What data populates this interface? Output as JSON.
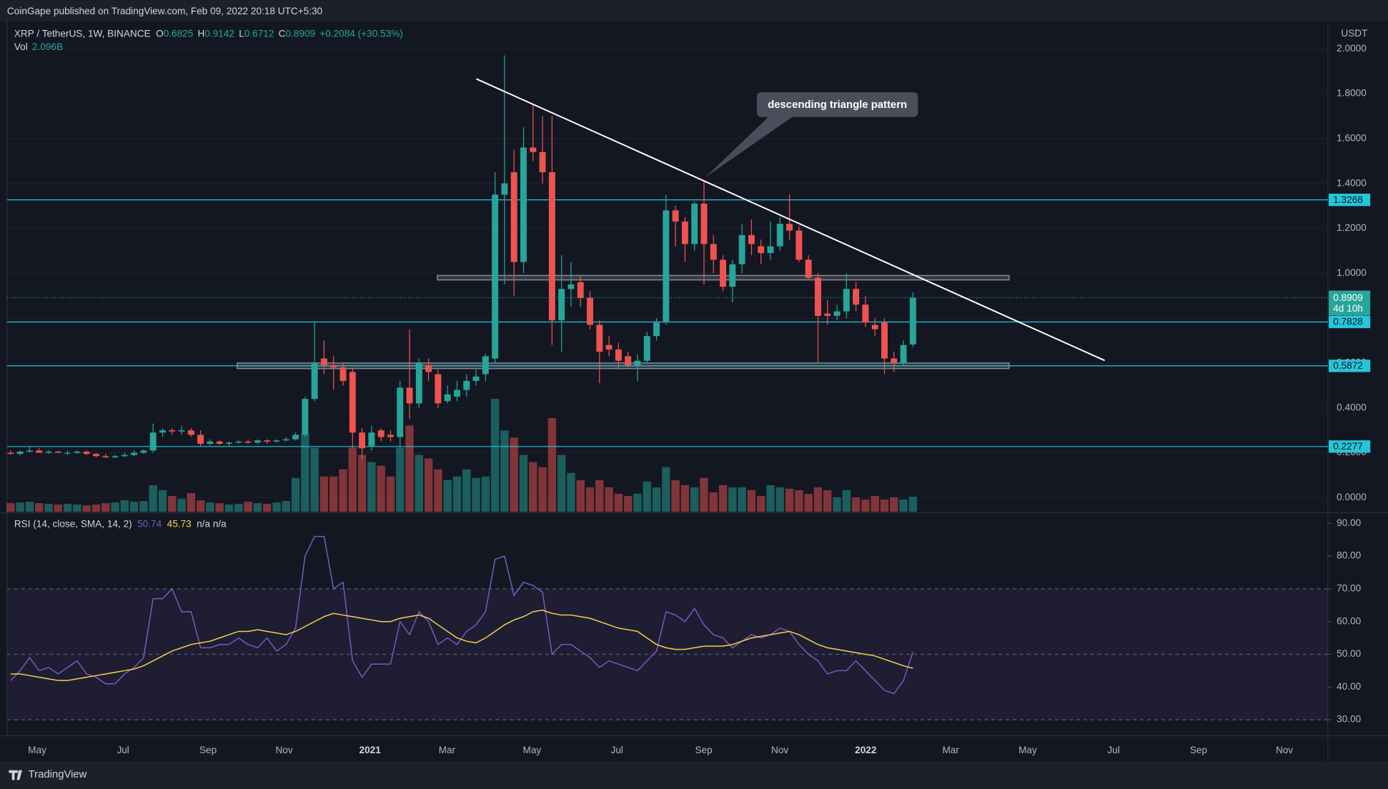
{
  "header": "CoinGape published on TradingView.com, Feb 09, 2022 20:18 UTC+5:30",
  "footer": "TradingView",
  "chart_data": [
    {
      "type": "candlestick",
      "symbol": "XRP / TetherUS, 1W, BINANCE",
      "ohlc_labels": [
        "O",
        "H",
        "L",
        "C"
      ],
      "change": "+0.2084 (+30.53%)",
      "vol_name": "Vol",
      "vol_label": "2.096B",
      "axis_unit": "USDT",
      "countdown": "4d 10h",
      "annotation": "descending triangle pattern",
      "x_labels": [
        "May",
        "Jul",
        "Sep",
        "Nov",
        "2021",
        "Mar",
        "May",
        "Jul",
        "Sep",
        "Nov",
        "2022",
        "Mar",
        "May",
        "Jul",
        "Sep",
        "Nov"
      ],
      "candles": {
        "open": [
          0.2,
          0.195,
          0.205,
          0.21,
          0.2,
          0.205,
          0.2,
          0.2,
          0.205,
          0.195,
          0.185,
          0.18,
          0.185,
          0.19,
          0.2,
          0.21,
          0.29,
          0.3,
          0.295,
          0.3,
          0.28,
          0.24,
          0.25,
          0.24,
          0.245,
          0.25,
          0.245,
          0.255,
          0.25,
          0.255,
          0.26,
          0.28,
          0.44,
          0.62,
          0.59,
          0.58,
          0.56,
          0.29,
          0.23,
          0.3,
          0.28,
          0.27,
          0.49,
          0.42,
          0.59,
          0.55,
          0.43,
          0.45,
          0.48,
          0.52,
          0.55,
          0.62,
          1.35,
          1.45,
          1.05,
          1.56,
          1.54,
          1.45,
          0.79,
          0.93,
          0.96,
          0.89,
          0.77,
          0.68,
          0.66,
          0.63,
          0.59,
          0.61,
          0.72,
          0.78,
          1.28,
          1.23,
          1.13,
          1.31,
          1.13,
          1.06,
          0.94,
          1.04,
          1.17,
          1.12,
          1.09,
          1.12,
          1.22,
          1.19,
          1.06,
          0.98,
          0.82,
          0.81,
          0.83,
          0.93,
          0.86,
          0.77,
          0.78,
          0.62,
          0.6,
          0.6825
        ],
        "high": [
          0.21,
          0.21,
          0.23,
          0.22,
          0.21,
          0.21,
          0.21,
          0.21,
          0.21,
          0.2,
          0.195,
          0.19,
          0.2,
          0.21,
          0.215,
          0.33,
          0.31,
          0.31,
          0.32,
          0.31,
          0.3,
          0.26,
          0.255,
          0.25,
          0.255,
          0.26,
          0.26,
          0.26,
          0.26,
          0.27,
          0.29,
          0.45,
          0.78,
          0.7,
          0.63,
          0.6,
          0.58,
          0.31,
          0.32,
          0.31,
          0.3,
          0.52,
          0.75,
          0.62,
          0.62,
          0.57,
          0.5,
          0.52,
          0.55,
          0.57,
          0.64,
          1.45,
          1.97,
          1.55,
          1.65,
          1.75,
          1.7,
          1.7,
          1.08,
          1.05,
          0.99,
          0.92,
          0.79,
          0.72,
          0.69,
          0.65,
          0.64,
          0.74,
          0.8,
          1.35,
          1.3,
          1.25,
          1.32,
          1.41,
          1.17,
          1.08,
          1.06,
          1.22,
          1.24,
          1.15,
          1.23,
          1.25,
          1.35,
          1.21,
          1.08,
          1.0,
          0.88,
          0.86,
          1.0,
          0.96,
          0.9,
          0.8,
          0.8,
          0.65,
          0.7,
          0.9142
        ],
        "low": [
          0.19,
          0.19,
          0.2,
          0.2,
          0.195,
          0.2,
          0.19,
          0.195,
          0.19,
          0.18,
          0.175,
          0.175,
          0.18,
          0.185,
          0.195,
          0.2,
          0.27,
          0.28,
          0.28,
          0.27,
          0.23,
          0.235,
          0.235,
          0.23,
          0.24,
          0.24,
          0.24,
          0.24,
          0.245,
          0.25,
          0.255,
          0.27,
          0.43,
          0.55,
          0.48,
          0.5,
          0.22,
          0.17,
          0.21,
          0.25,
          0.25,
          0.22,
          0.35,
          0.4,
          0.52,
          0.4,
          0.42,
          0.43,
          0.45,
          0.5,
          0.52,
          0.6,
          0.95,
          0.9,
          1.0,
          1.5,
          1.4,
          0.68,
          0.65,
          0.85,
          0.85,
          0.75,
          0.51,
          0.63,
          0.57,
          0.58,
          0.52,
          0.6,
          0.7,
          0.77,
          1.12,
          1.05,
          1.1,
          0.95,
          1.0,
          0.92,
          0.87,
          1.0,
          1.08,
          1.04,
          1.06,
          1.1,
          1.15,
          1.05,
          0.97,
          0.6,
          0.77,
          0.79,
          0.8,
          0.83,
          0.76,
          0.72,
          0.55,
          0.56,
          0.59,
          0.6712
        ],
        "close": [
          0.195,
          0.205,
          0.21,
          0.2,
          0.205,
          0.2,
          0.2,
          0.205,
          0.195,
          0.185,
          0.18,
          0.185,
          0.19,
          0.2,
          0.21,
          0.29,
          0.3,
          0.295,
          0.3,
          0.28,
          0.24,
          0.25,
          0.24,
          0.245,
          0.25,
          0.245,
          0.255,
          0.25,
          0.255,
          0.26,
          0.28,
          0.44,
          0.6,
          0.59,
          0.58,
          0.52,
          0.29,
          0.22,
          0.29,
          0.27,
          0.27,
          0.49,
          0.42,
          0.6,
          0.56,
          0.42,
          0.46,
          0.48,
          0.52,
          0.54,
          0.63,
          1.35,
          1.4,
          1.05,
          1.56,
          1.54,
          1.45,
          0.79,
          0.93,
          0.95,
          0.89,
          0.77,
          0.65,
          0.66,
          0.61,
          0.59,
          0.61,
          0.72,
          0.78,
          1.28,
          1.23,
          1.13,
          1.31,
          1.13,
          1.06,
          0.94,
          1.04,
          1.17,
          1.13,
          1.09,
          1.12,
          1.22,
          1.19,
          1.06,
          0.98,
          0.81,
          0.81,
          0.83,
          0.93,
          0.86,
          0.78,
          0.75,
          0.62,
          0.6,
          0.68,
          0.8909
        ],
        "volume": [
          1.2,
          1.3,
          1.4,
          1.2,
          1.1,
          1.0,
          1.1,
          1.0,
          0.9,
          1.0,
          1.2,
          1.3,
          1.6,
          1.4,
          1.5,
          3.7,
          3.0,
          2.2,
          1.8,
          2.6,
          1.6,
          1.3,
          1.2,
          1.0,
          1.1,
          1.4,
          1.2,
          1.1,
          1.3,
          1.5,
          4.7,
          10.8,
          8.9,
          4.9,
          4.9,
          5.9,
          8.9,
          7.9,
          6.9,
          6.4,
          4.9,
          8.9,
          12.0,
          7.9,
          7.4,
          5.9,
          4.4,
          4.9,
          5.9,
          4.7,
          4.9,
          15.7,
          11.3,
          10.3,
          7.9,
          6.9,
          6.2,
          13.0,
          7.9,
          5.4,
          4.4,
          3.4,
          4.4,
          3.4,
          2.5,
          2.2,
          2.5,
          4.2,
          3.4,
          6.2,
          4.4,
          3.7,
          3.4,
          4.7,
          2.7,
          3.7,
          3.4,
          3.4,
          3.0,
          2.2,
          3.7,
          3.4,
          3.2,
          3.0,
          2.5,
          3.4,
          3.0,
          2.0,
          3.0,
          2.0,
          1.7,
          2.2,
          1.7,
          2.0,
          1.7,
          2.096
        ]
      },
      "up_color": "#26a69a",
      "down_color": "#ef5350",
      "ylim": [
        -0.063,
        2.118
      ],
      "yticks": [
        {
          "value": 0,
          "label": "0.0000"
        },
        {
          "value": 0.2,
          "label": "0.2000"
        },
        {
          "value": 0.4,
          "label": "0.4000"
        },
        {
          "value": 0.6,
          "label": "0.6000"
        },
        {
          "value": 0.8,
          "label": "0.8000"
        },
        {
          "value": 1,
          "label": "1.0000"
        },
        {
          "value": 1.2,
          "label": "1.2000"
        },
        {
          "value": 1.4,
          "label": "1.4000"
        },
        {
          "value": 1.6,
          "label": "1.6000"
        },
        {
          "value": 1.8,
          "label": "1.8000"
        },
        {
          "value": 2,
          "label": "2.0000"
        }
      ],
      "grid": true,
      "levels": [
        1.3268,
        0.7828,
        0.5872,
        0.2277
      ],
      "level_color": "#26c6da",
      "zones": [
        [
          0.97,
          0.99
        ],
        [
          0.575,
          0.6
        ]
      ],
      "trendline": [
        1.866,
        0.611
      ]
    },
    {
      "type": "line",
      "title": "RSI (14, close, SMA, 14, 2)",
      "na": "n/a n/a",
      "series": [
        {
          "color": "#7e57c2",
          "values": [
            42,
            45,
            49,
            45,
            46,
            44,
            46,
            48,
            44,
            43,
            41,
            41,
            44,
            46,
            49,
            67,
            67,
            70,
            63,
            63,
            52,
            52,
            53,
            53,
            55,
            53,
            52,
            55,
            51,
            53,
            58,
            80,
            86,
            86,
            70,
            72,
            48,
            43,
            47,
            47,
            47,
            60,
            56,
            63,
            60,
            53,
            55,
            53,
            57,
            59,
            63,
            79,
            80,
            68,
            72,
            71,
            69,
            50,
            53,
            53,
            51,
            49,
            46,
            48,
            47,
            46,
            45,
            48,
            51,
            63,
            62,
            60,
            64,
            59,
            56,
            55,
            52,
            54,
            56,
            55,
            56,
            58,
            57,
            53,
            50,
            48,
            44,
            45,
            45,
            48,
            45,
            42,
            39,
            38,
            42,
            50.74
          ]
        },
        {
          "color": "#f5d24a",
          "values": [
            44,
            44,
            43.5,
            43,
            42.5,
            42,
            42,
            42.5,
            43,
            43.5,
            44,
            44.5,
            45,
            45.5,
            46.5,
            48,
            49.5,
            51,
            52,
            53,
            53.5,
            54,
            55,
            56,
            57,
            57,
            57.5,
            57,
            56.5,
            56,
            57,
            58.5,
            60,
            61.5,
            62.5,
            62,
            61.5,
            61,
            60.5,
            60,
            60,
            61,
            61.5,
            62,
            61,
            59,
            57,
            55,
            54,
            53.5,
            55,
            57,
            59,
            60.5,
            61.5,
            63,
            63.5,
            62.5,
            62,
            62,
            61.5,
            61,
            60,
            59,
            58,
            57.5,
            57,
            55,
            53,
            52,
            51.5,
            51.5,
            52,
            52.5,
            52.5,
            52.5,
            53,
            54,
            55,
            55.5,
            56,
            56.5,
            57,
            56,
            54.5,
            53,
            52,
            51.5,
            51,
            50.5,
            50,
            49.5,
            48.5,
            47.5,
            46.5,
            45.73
          ]
        }
      ],
      "ylim": [
        25.4,
        93
      ],
      "yticks": [
        {
          "value": 30,
          "label": "30.00"
        },
        {
          "value": 40,
          "label": "40.00"
        },
        {
          "value": 50,
          "label": "50.00"
        },
        {
          "value": 60,
          "label": "60.00"
        },
        {
          "value": 70,
          "label": "70.00"
        },
        {
          "value": 80,
          "label": "80.00"
        },
        {
          "value": 90,
          "label": "90.00"
        }
      ],
      "band": [
        30,
        70
      ],
      "midline": 50
    }
  ]
}
